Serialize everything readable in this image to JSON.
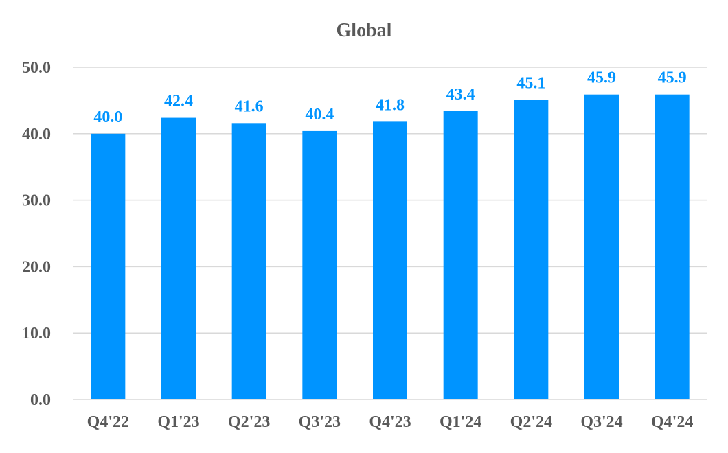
{
  "chart_data": {
    "type": "bar",
    "title": "Global",
    "xlabel": "",
    "ylabel": "",
    "categories": [
      "Q4'22",
      "Q1'23",
      "Q2'23",
      "Q3'23",
      "Q4'23",
      "Q1'24",
      "Q2'24",
      "Q3'24",
      "Q4'24"
    ],
    "values": [
      40.0,
      42.4,
      41.6,
      40.4,
      41.8,
      43.4,
      45.1,
      45.9,
      45.9
    ],
    "value_labels": [
      "40.0",
      "42.4",
      "41.6",
      "40.4",
      "41.8",
      "43.4",
      "45.1",
      "45.9",
      "45.9"
    ],
    "ylim": [
      0,
      50
    ],
    "yticks": [
      0,
      10,
      20,
      30,
      40,
      50
    ],
    "ytick_labels": [
      "0.0",
      "10.0",
      "20.0",
      "30.0",
      "40.0",
      "50.0"
    ],
    "grid": true,
    "legend": "none",
    "bar_color": "#0094FF",
    "label_color": "#0094FF"
  }
}
